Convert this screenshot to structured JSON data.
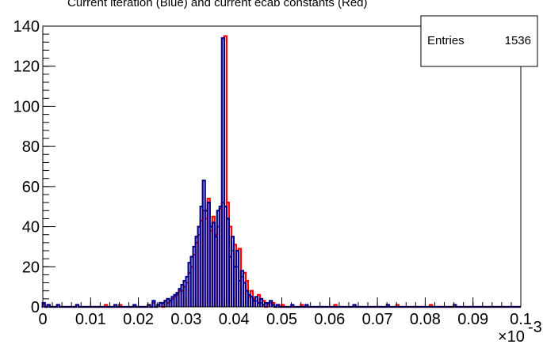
{
  "chart_data": {
    "type": "bar",
    "title": "Current iteration (Blue) and current ecab constants (Red)",
    "xlabel": "",
    "ylabel": "",
    "x_multiplier_label": "×10",
    "x_multiplier_exponent": "-3",
    "xlim": [
      0,
      0.1
    ],
    "ylim": [
      0,
      140
    ],
    "x_ticks": [
      "0",
      "0.01",
      "0.02",
      "0.03",
      "0.04",
      "0.05",
      "0.06",
      "0.07",
      "0.08",
      "0.09",
      "0.1"
    ],
    "y_ticks": [
      "0",
      "20",
      "40",
      "60",
      "80",
      "100",
      "120",
      "140"
    ],
    "stats": {
      "label": "Entries",
      "value": "1536"
    },
    "series": [
      {
        "name": "Red",
        "color": "#ff0000",
        "x": [
          0.0002,
          0.0012,
          0.0032,
          0.0072,
          0.0132,
          0.0162,
          0.0222,
          0.0232,
          0.0242,
          0.0247,
          0.0257,
          0.0262,
          0.0267,
          0.0272,
          0.0277,
          0.0282,
          0.0287,
          0.0292,
          0.0297,
          0.0302,
          0.0307,
          0.0312,
          0.0317,
          0.0322,
          0.0327,
          0.0332,
          0.0337,
          0.0342,
          0.0347,
          0.0352,
          0.0357,
          0.0362,
          0.0367,
          0.0372,
          0.0377,
          0.0382,
          0.0387,
          0.0392,
          0.0397,
          0.0402,
          0.0407,
          0.0412,
          0.0417,
          0.0422,
          0.0427,
          0.0432,
          0.0437,
          0.0442,
          0.0447,
          0.0452,
          0.0457,
          0.0462,
          0.0472,
          0.0477,
          0.0482,
          0.0492,
          0.0502,
          0.0542,
          0.0612,
          0.0742,
          0.0812
        ],
        "y": [
          1,
          1,
          1,
          1,
          1,
          1,
          1,
          2,
          1,
          2,
          3,
          2,
          3,
          4,
          5,
          6,
          8,
          8,
          10,
          12,
          17,
          20,
          26,
          32,
          36,
          43,
          48,
          44,
          54,
          38,
          45,
          36,
          40,
          49,
          52,
          135,
          52,
          40,
          28,
          31,
          20,
          29,
          15,
          17,
          13,
          5,
          8,
          4,
          3,
          6,
          2,
          3,
          1,
          2,
          2,
          1,
          1,
          1,
          1,
          1,
          1
        ]
      },
      {
        "name": "Blue",
        "color": "#00008b",
        "x": [
          0.0002,
          0.0012,
          0.0032,
          0.0072,
          0.0152,
          0.0192,
          0.0222,
          0.0232,
          0.0242,
          0.0247,
          0.0252,
          0.0257,
          0.0262,
          0.0267,
          0.0272,
          0.0277,
          0.0282,
          0.0287,
          0.0292,
          0.0297,
          0.0302,
          0.0307,
          0.0312,
          0.0317,
          0.0322,
          0.0327,
          0.0332,
          0.0337,
          0.0342,
          0.0347,
          0.0352,
          0.0357,
          0.0362,
          0.0367,
          0.0372,
          0.0377,
          0.0382,
          0.0387,
          0.0392,
          0.0397,
          0.0402,
          0.0407,
          0.0412,
          0.0417,
          0.0422,
          0.0427,
          0.0432,
          0.0437,
          0.0442,
          0.0447,
          0.0452,
          0.0457,
          0.0462,
          0.0467,
          0.0472,
          0.0477,
          0.0482,
          0.0492,
          0.0522,
          0.0552,
          0.0652,
          0.0722,
          0.0862
        ],
        "y": [
          2,
          1,
          1,
          1,
          1,
          1,
          1,
          3,
          1,
          2,
          2,
          3,
          4,
          3,
          5,
          6,
          7,
          9,
          11,
          13,
          15,
          22,
          25,
          30,
          35,
          40,
          50,
          63,
          48,
          52,
          40,
          42,
          35,
          48,
          50,
          134,
          50,
          44,
          25,
          35,
          20,
          28,
          13,
          18,
          12,
          8,
          6,
          5,
          3,
          5,
          2,
          4,
          1,
          2,
          2,
          3,
          1,
          1,
          1,
          1,
          1,
          1,
          1
        ]
      }
    ]
  }
}
